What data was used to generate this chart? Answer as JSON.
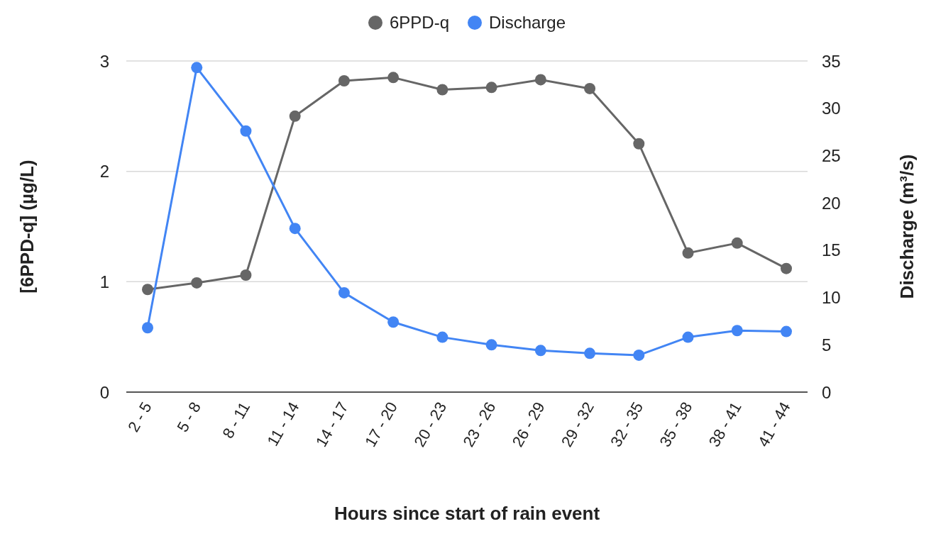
{
  "chart_data": {
    "type": "line",
    "xlabel": "Hours since start of rain event",
    "ylabel": "[6PPD-q] (µg/L)",
    "y2label": "Discharge (m³/s)",
    "categories": [
      "2 - 5",
      "5 - 8",
      "8 - 11",
      "11 - 14",
      "14 - 17",
      "17 - 20",
      "20 - 23",
      "23 - 26",
      "26 - 29",
      "29 - 32",
      "32 - 35",
      "35 - 38",
      "38 - 41",
      "41 - 44"
    ],
    "series": [
      {
        "name": "6PPD-q",
        "color": "#666666",
        "values": [
          0.93,
          0.99,
          1.06,
          2.5,
          2.82,
          2.85,
          2.74,
          2.76,
          2.83,
          2.75,
          2.25,
          1.26,
          1.35,
          1.12
        ]
      },
      {
        "name": "Discharge",
        "color": "#4285f4",
        "axis": "y2",
        "values": [
          6.8,
          34.3,
          27.6,
          17.3,
          10.5,
          7.4,
          5.8,
          5.0,
          4.4,
          4.1,
          3.9,
          5.8,
          6.5,
          6.4
        ]
      }
    ],
    "ylim": [
      0,
      3
    ],
    "yticks": [
      0,
      1,
      2,
      3
    ],
    "y2lim": [
      0,
      35
    ],
    "y2ticks": [
      0,
      5,
      10,
      15,
      20,
      25,
      30,
      35
    ],
    "grid": "y",
    "legend": "top",
    "marker": "circle",
    "line_style": "solid"
  }
}
